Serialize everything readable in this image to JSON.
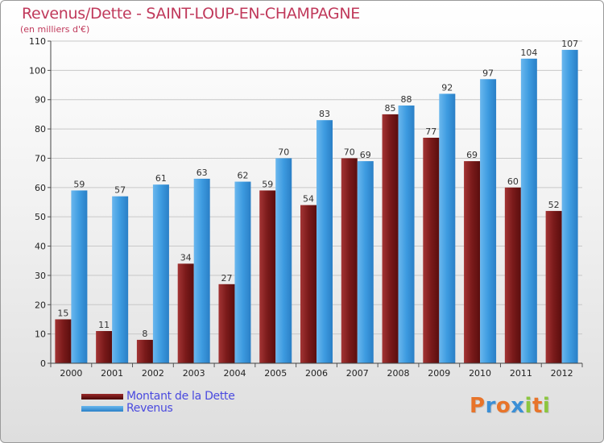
{
  "chart_data": {
    "type": "bar",
    "title": "Revenus/Dette - SAINT-LOUP-EN-CHAMPAGNE",
    "subtitle": "(en milliers d'€)",
    "categories": [
      "2000",
      "2001",
      "2002",
      "2003",
      "2004",
      "2005",
      "2006",
      "2007",
      "2008",
      "2009",
      "2010",
      "2011",
      "2012"
    ],
    "series": [
      {
        "name": "Montant de la Dette",
        "color": "#7a1a1a",
        "values": [
          15,
          11,
          8,
          34,
          27,
          59,
          54,
          70,
          85,
          77,
          69,
          60,
          52
        ]
      },
      {
        "name": "Revenus",
        "color": "#3d9be0",
        "values": [
          59,
          57,
          61,
          63,
          62,
          70,
          83,
          69,
          88,
          92,
          97,
          104,
          107
        ]
      }
    ],
    "ylim": [
      0,
      110
    ],
    "yticks": [
      0,
      10,
      20,
      30,
      40,
      50,
      60,
      70,
      80,
      90,
      100,
      110
    ],
    "grid": true,
    "legend_position": "bottom-left"
  },
  "logo": {
    "letters": [
      "P",
      "r",
      "o",
      "x",
      "i",
      "t",
      "i"
    ],
    "colors": [
      "#e8742a",
      "#3b8fd6",
      "#e8742a",
      "#3b8fd6",
      "#8cc63f",
      "#e8742a",
      "#8cc63f"
    ]
  }
}
